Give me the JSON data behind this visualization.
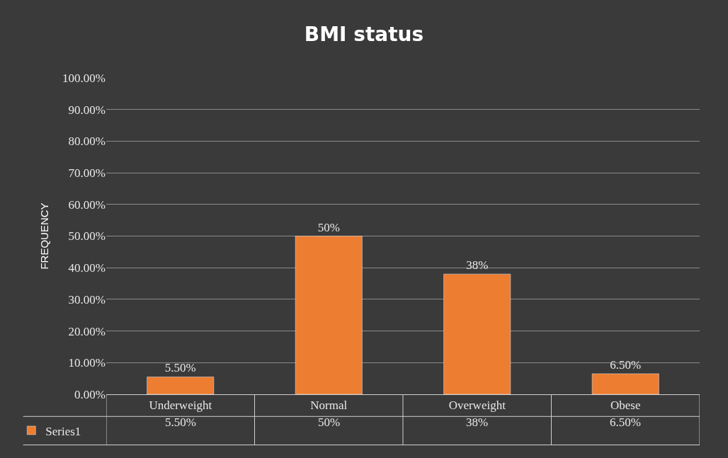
{
  "chart_data": {
    "type": "bar",
    "title": "BMI status",
    "ylabel": "FREQUENCY",
    "categories": [
      "Underweight",
      "Normal",
      "Overweight",
      "Obese"
    ],
    "series": [
      {
        "name": "Series1",
        "color": "#ed7d31",
        "values": [
          5.5,
          50,
          38,
          6.5
        ],
        "value_labels": [
          "5.50%",
          "50%",
          "38%",
          "6.50%"
        ]
      }
    ],
    "ylim": [
      0,
      100
    ],
    "yticks": [
      {
        "value": 0,
        "label": "0.00%"
      },
      {
        "value": 10,
        "label": "10.00%"
      },
      {
        "value": 20,
        "label": "20.00%"
      },
      {
        "value": 30,
        "label": "30.00%"
      },
      {
        "value": 40,
        "label": "40.00%"
      },
      {
        "value": 50,
        "label": "50.00%"
      },
      {
        "value": 60,
        "label": "60.00%"
      },
      {
        "value": 70,
        "label": "70.00%"
      },
      {
        "value": 80,
        "label": "80.00%"
      },
      {
        "value": 90,
        "label": "90.00%"
      },
      {
        "value": 100,
        "label": "100.00%"
      }
    ],
    "grid": "y",
    "legend": "bottom left"
  }
}
